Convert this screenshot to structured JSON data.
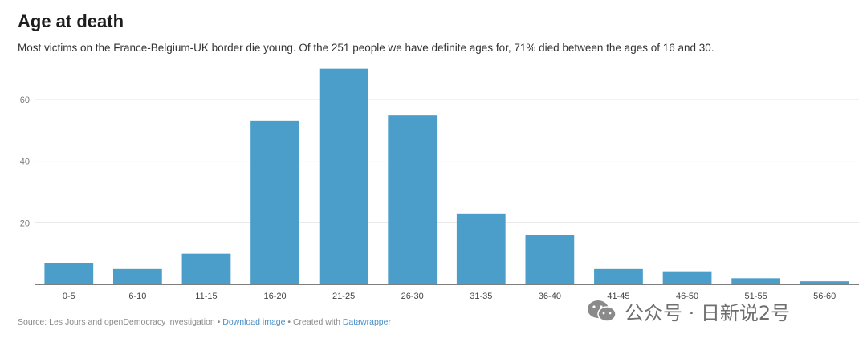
{
  "title": "Age at death",
  "subtitle": "Most victims on the France-Belgium-UK border die young. Of the 251 people we have definite ages for, 71% died between the ages of 16 and 30.",
  "footer": {
    "source": "Source: Les Jours and openDemocracy investigation",
    "sep1": " • ",
    "download": "Download image",
    "sep2": " • Created with ",
    "tool": "Datawrapper"
  },
  "watermark": {
    "text": "公众号 · 日新说2号",
    "icon": "wechat-icon"
  },
  "colors": {
    "bar": "#4a9ec9",
    "grid": "#e6e6e6",
    "axis": "#333333",
    "link": "#4a8fc7"
  },
  "chart_data": {
    "type": "bar",
    "categories": [
      "0-5",
      "6-10",
      "11-15",
      "16-20",
      "21-25",
      "26-30",
      "31-35",
      "36-40",
      "41-45",
      "46-50",
      "51-55",
      "56-60"
    ],
    "values": [
      7,
      5,
      10,
      53,
      70,
      55,
      23,
      16,
      5,
      4,
      2,
      1
    ],
    "yticks": [
      20,
      40,
      60
    ],
    "ylim": [
      0,
      72
    ],
    "grid": true,
    "xlabel": "",
    "ylabel": ""
  }
}
